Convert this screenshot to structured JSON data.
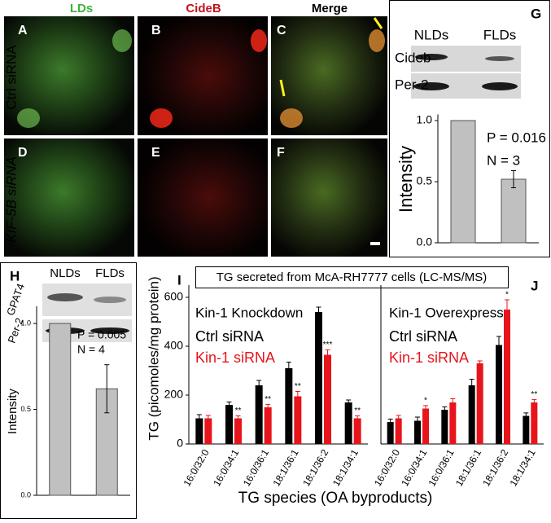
{
  "figure": {
    "column_labels": [
      "LDs",
      "CideB",
      "Merge"
    ],
    "row_labels": [
      "Ctrl  siRNA",
      "KIF-5B siRNA"
    ],
    "panel_letters": [
      "A",
      "B",
      "C",
      "D",
      "E",
      "F",
      "G",
      "H",
      "I",
      "J"
    ]
  },
  "blots": [
    {
      "lanes": [
        "NLDs",
        "FLDs"
      ],
      "rows": [
        "Cideb",
        "Per-2"
      ]
    },
    {
      "lanes": [
        "NLDs",
        "FLDs"
      ],
      "rows": [
        "GPAT4",
        "Per-2"
      ]
    }
  ],
  "banner": "TG secreted from McA-RH7777 cells (LC-MS/MS)",
  "chart_data": [
    {
      "type": "bar",
      "y_label": "Intensity",
      "values": [
        1.0,
        0.52
      ],
      "errors": [
        null,
        0.07
      ],
      "color": "#c0c0c0",
      "ylim": [
        0,
        1.05
      ],
      "yticks": [
        {
          "value": 0,
          "label": "0.0"
        },
        0.5,
        {
          "value": 1,
          "label": "1.0"
        }
      ],
      "annotations": [
        "P = 0.016",
        "N = 3"
      ]
    },
    {
      "type": "bar",
      "y_label": "Intensity",
      "values": [
        1.0,
        0.62
      ],
      "errors": [
        null,
        0.14
      ],
      "color": "#c0c0c0",
      "ylim": [
        0,
        1.1
      ],
      "yticks": [
        {
          "value": 0,
          "label": "0.0"
        },
        0.5,
        {
          "value": 1,
          "label": "1.0"
        }
      ],
      "annotations": [
        "P = 0.005",
        "N = 4"
      ]
    },
    {
      "type": "grouped_bar",
      "title": "Kin-1 Knockdown",
      "y_label": "TG (picomoles/mg protein)",
      "x_label": "TG species (OA byproducts)",
      "categories": [
        "16:0/32:0",
        "16:0/34:1",
        "16:0/36:1",
        "18:1/36:1",
        "18:1/36:2",
        "18:1/34:1"
      ],
      "series": [
        {
          "name": "Ctrl siRNA",
          "color": "#000000",
          "values": [
            105,
            160,
            240,
            310,
            540,
            170
          ],
          "errors": [
            15,
            12,
            20,
            25,
            20,
            10
          ],
          "significance": [
            null,
            null,
            null,
            null,
            null,
            null
          ]
        },
        {
          "name": "Kin-1 siRNA",
          "color": "#e8141b",
          "values": [
            105,
            105,
            150,
            195,
            365,
            105
          ],
          "errors": [
            12,
            10,
            12,
            20,
            20,
            10
          ],
          "significance": [
            null,
            "**",
            "**",
            "**",
            "***",
            "**"
          ]
        }
      ],
      "ylim": [
        0,
        650
      ],
      "yticks": [
        0,
        200,
        400,
        600
      ]
    },
    {
      "type": "grouped_bar",
      "title": "Kin-1 Overexpress",
      "categories": [
        "16:0/32:0",
        "16:0/34:1",
        "16:0/36:1",
        "18:1/36:1",
        "18:1/36:2",
        "18:1/34:1"
      ],
      "series": [
        {
          "name": "Ctrl siRNA",
          "color": "#000000",
          "values": [
            90,
            95,
            140,
            240,
            405,
            115
          ],
          "errors": [
            12,
            15,
            12,
            25,
            35,
            12
          ],
          "significance": [
            null,
            null,
            null,
            null,
            null,
            null
          ]
        },
        {
          "name": "Kin-1 siRNA",
          "color": "#e8141b",
          "values": [
            105,
            145,
            170,
            330,
            550,
            170
          ],
          "errors": [
            12,
            12,
            15,
            10,
            40,
            12
          ],
          "significance": [
            null,
            "*",
            null,
            null,
            "*",
            "**"
          ]
        }
      ],
      "ylim": [
        0,
        650
      ]
    }
  ]
}
